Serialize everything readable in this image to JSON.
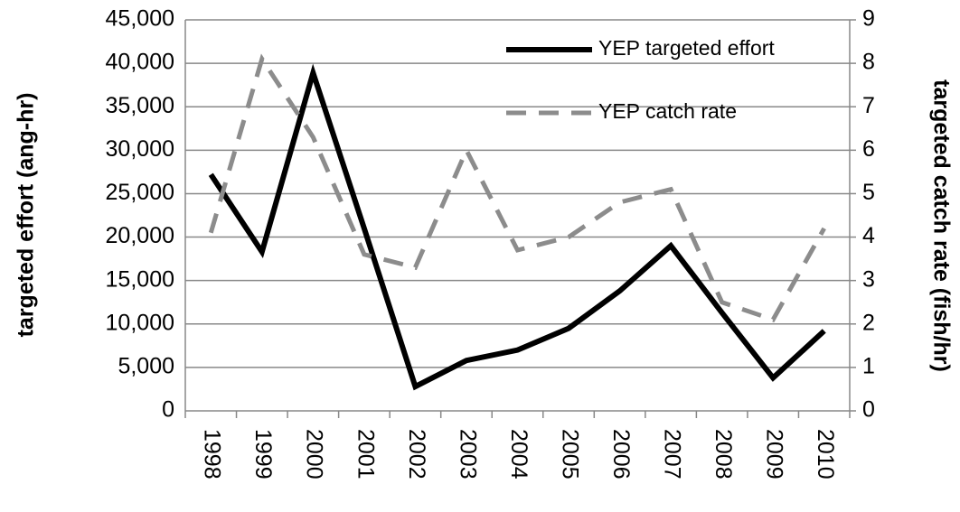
{
  "chart_data": {
    "type": "line",
    "categories": [
      "1998",
      "1999",
      "2000",
      "2001",
      "2002",
      "2003",
      "2004",
      "2005",
      "2006",
      "2007",
      "2008",
      "2009",
      "2010"
    ],
    "y_label": "targeted effort (ang-hr)",
    "y2_label": "targeted catch rate (fish/hr)",
    "series": [
      {
        "name": "YEP targeted effort",
        "color": "#000000",
        "dash": false,
        "values": [
          27200,
          18300,
          38900,
          21000,
          2800,
          5800,
          7000,
          9500,
          13800,
          19000,
          11300,
          3800,
          9200
        ]
      },
      {
        "name": "YEP catch rate",
        "color": "#8c8c8c",
        "dash": true,
        "axis": "y2",
        "values": [
          4.1,
          8.1,
          6.3,
          3.6,
          3.3,
          6.0,
          3.7,
          4.0,
          4.8,
          5.1,
          2.5,
          2.1,
          4.2
        ]
      }
    ],
    "ylim": [
      0,
      45000
    ],
    "yticks": [
      0,
      {
        "value": 5000,
        "label": "5,000"
      },
      {
        "value": 10000,
        "label": "10,000"
      },
      {
        "value": 15000,
        "label": "15,000"
      },
      {
        "value": 20000,
        "label": "20,000"
      },
      {
        "value": 25000,
        "label": "25,000"
      },
      {
        "value": 30000,
        "label": "30,000"
      },
      {
        "value": 35000,
        "label": "35,000"
      },
      {
        "value": 40000,
        "label": "40,000"
      },
      {
        "value": 45000,
        "label": "45,000"
      }
    ],
    "y2lim": [
      0,
      9
    ],
    "y2ticks": [
      0,
      1,
      2,
      3,
      4,
      5,
      6,
      7,
      8,
      9
    ],
    "grid": true
  }
}
